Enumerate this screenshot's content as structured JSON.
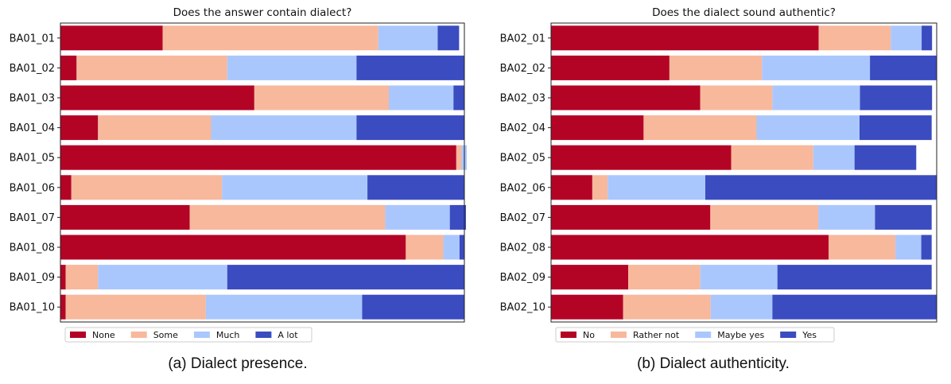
{
  "chart_data": [
    {
      "type": "bar",
      "orientation": "horizontal",
      "stacked": true,
      "normalized": true,
      "title": "Does the answer contain dialect?",
      "categories": [
        "BA01_01",
        "BA01_02",
        "BA01_03",
        "BA01_04",
        "BA01_05",
        "BA01_06",
        "BA01_07",
        "BA01_08",
        "BA01_09",
        "BA01_10"
      ],
      "series": [
        {
          "name": "None",
          "color": "#b40426",
          "values": [
            0.253,
            0.04,
            0.48,
            0.093,
            0.98,
            0.027,
            0.32,
            0.855,
            0.013,
            0.013
          ]
        },
        {
          "name": "Some",
          "color": "#f7b89c",
          "values": [
            0.534,
            0.373,
            0.333,
            0.28,
            0.013,
            0.373,
            0.484,
            0.093,
            0.08,
            0.347
          ]
        },
        {
          "name": "Much",
          "color": "#aac7fd",
          "values": [
            0.147,
            0.32,
            0.16,
            0.36,
            0.013,
            0.36,
            0.16,
            0.04,
            0.32,
            0.387
          ]
        },
        {
          "name": "A lot",
          "color": "#3b4cc0",
          "values": [
            0.053,
            0.267,
            0.027,
            0.267,
            0.0,
            0.24,
            0.04,
            0.013,
            0.587,
            0.253
          ]
        }
      ],
      "legend": {
        "position": "bottom-left",
        "columns": 4
      },
      "grid": false,
      "caption": "(a) Dialect presence."
    },
    {
      "type": "bar",
      "orientation": "horizontal",
      "stacked": true,
      "normalized": true,
      "title": "Does the dialect sound authentic?",
      "categories": [
        "BA02_01",
        "BA02_02",
        "BA02_03",
        "BA02_04",
        "BA02_05",
        "BA02_06",
        "BA02_07",
        "BA02_08",
        "BA02_09",
        "BA02_10"
      ],
      "series": [
        {
          "name": "No",
          "color": "#b40426",
          "values": [
            0.694,
            0.307,
            0.387,
            0.24,
            0.467,
            0.107,
            0.413,
            0.72,
            0.2,
            0.187
          ]
        },
        {
          "name": "Rather not",
          "color": "#f7b89c",
          "values": [
            0.187,
            0.24,
            0.187,
            0.293,
            0.213,
            0.04,
            0.28,
            0.173,
            0.187,
            0.227
          ]
        },
        {
          "name": "Maybe yes",
          "color": "#aac7fd",
          "values": [
            0.08,
            0.28,
            0.227,
            0.267,
            0.107,
            0.253,
            0.147,
            0.067,
            0.2,
            0.16
          ]
        },
        {
          "name": "Yes",
          "color": "#3b4cc0",
          "values": [
            0.027,
            0.173,
            0.187,
            0.187,
            0.16,
            0.6,
            0.147,
            0.027,
            0.4,
            0.427
          ]
        }
      ],
      "legend": {
        "position": "bottom-left",
        "columns": 4
      },
      "grid": false,
      "caption": "(b) Dialect authenticity."
    }
  ]
}
